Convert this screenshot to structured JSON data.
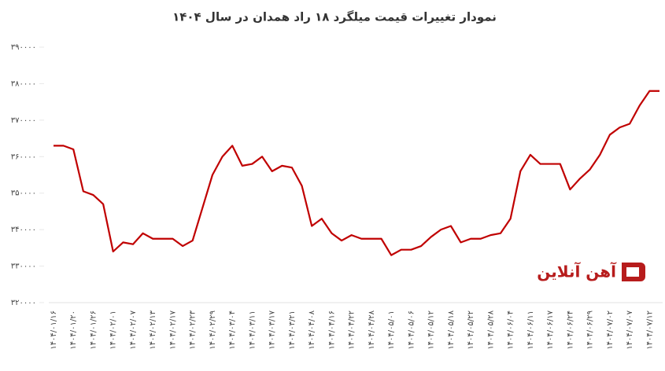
{
  "chart_data": {
    "type": "line",
    "title": "نمودار تغییرات قیمت میلگرد ۱۸ راد همدان در سال ۱۴۰۴",
    "watermark": "آهن آنلاین",
    "categories": [
      "۱۴۰۴/۰۱/۱۶",
      null,
      "۱۴۰۴/۰۱/۲۰",
      null,
      "۱۴۰۴/۰۱/۲۶",
      null,
      "۱۴۰۴/۰۲/۰۱",
      null,
      "۱۴۰۴/۰۲/۰۷",
      null,
      "۱۴۰۴/۰۲/۱۳",
      null,
      "۱۴۰۴/۰۲/۱۷",
      null,
      "۱۴۰۴/۰۲/۲۳",
      null,
      "۱۴۰۴/۰۲/۲۹",
      null,
      "۱۴۰۴/۰۳/۰۴",
      null,
      "۱۴۰۴/۰۳/۱۱",
      null,
      "۱۴۰۴/۰۳/۱۷",
      null,
      "۱۴۰۴/۰۳/۲۱",
      null,
      "۱۴۰۴/۰۴/۰۸",
      null,
      "۱۴۰۴/۰۴/۱۶",
      null,
      "۱۴۰۴/۰۴/۲۲",
      null,
      "۱۴۰۴/۰۴/۲۸",
      null,
      "۱۴۰۴/۰۵/۰۱",
      null,
      "۱۴۰۴/۰۵/۰۶",
      null,
      "۱۴۰۴/۰۵/۱۲",
      null,
      "۱۴۰۴/۰۵/۱۸",
      null,
      "۱۴۰۴/۰۵/۲۲",
      null,
      "۱۴۰۴/۰۵/۲۸",
      null,
      "۱۴۰۴/۰۶/۰۴",
      null,
      "۱۴۰۴/۰۶/۱۱",
      null,
      "۱۴۰۴/۰۶/۱۷",
      null,
      "۱۴۰۴/۰۶/۲۴",
      null,
      "۱۴۰۴/۰۶/۲۹",
      null,
      "۱۴۰۴/۰۷/۰۲",
      null,
      "۱۴۰۴/۰۷/۰۷",
      null,
      "۱۴۰۴/۰۷/۱۲",
      null
    ],
    "series": [
      {
        "color": "#c00000",
        "values": [
          363000,
          363000,
          362000,
          350500,
          349500,
          347000,
          334000,
          336500,
          336000,
          339000,
          337500,
          337500,
          337500,
          335500,
          337000,
          346000,
          355000,
          360000,
          363000,
          357500,
          358000,
          360000,
          356000,
          357500,
          357000,
          352000,
          341000,
          343000,
          339000,
          337000,
          338500,
          337500,
          337500,
          337500,
          333000,
          334500,
          334500,
          335500,
          338000,
          340000,
          341000,
          336500,
          337500,
          337500,
          338500,
          339000,
          343000,
          356000,
          360500,
          358000,
          358000,
          358000,
          351000,
          354000,
          356500,
          360500,
          366000,
          368000,
          369000,
          374000,
          378000,
          378000
        ]
      }
    ],
    "ylim": [
      320000,
      390000
    ],
    "yticks": [
      {
        "value": 320000,
        "label": "۳۲۰۰۰۰"
      },
      {
        "value": 330000,
        "label": "۳۳۰۰۰۰"
      },
      {
        "value": 340000,
        "label": "۳۴۰۰۰۰"
      },
      {
        "value": 350000,
        "label": "۳۵۰۰۰۰"
      },
      {
        "value": 360000,
        "label": "۳۶۰۰۰۰"
      },
      {
        "value": 370000,
        "label": "۳۷۰۰۰۰"
      },
      {
        "value": 380000,
        "label": "۳۸۰۰۰۰"
      },
      {
        "value": 390000,
        "label": "۳۹۰۰۰۰"
      }
    ]
  }
}
